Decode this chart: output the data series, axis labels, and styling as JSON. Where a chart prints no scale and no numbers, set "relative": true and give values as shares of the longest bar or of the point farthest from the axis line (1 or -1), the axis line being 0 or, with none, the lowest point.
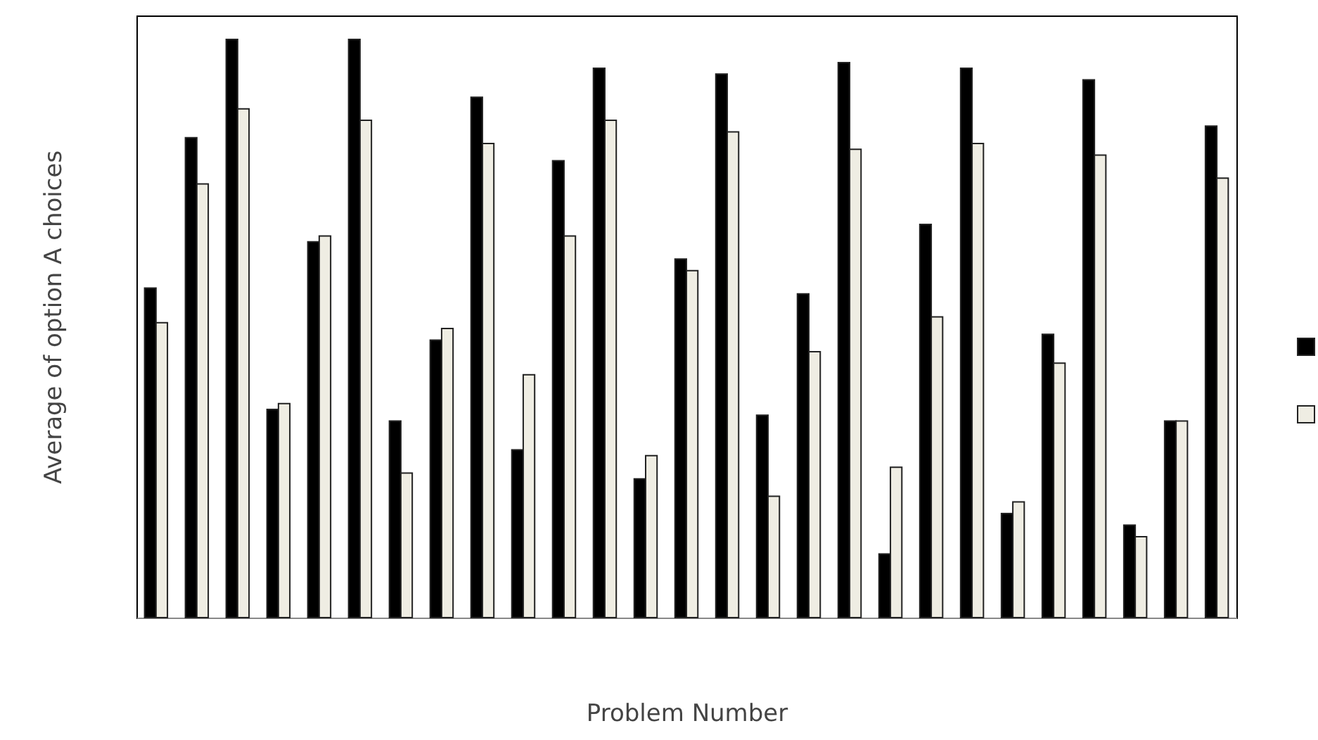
{
  "chart_data": {
    "type": "bar",
    "relative": true,
    "xlabel": "Problem Number",
    "ylabel": "Average of option A choices",
    "categories": [
      null,
      null,
      null,
      null,
      null,
      null,
      null,
      null,
      null,
      null,
      null,
      null,
      null,
      null,
      null,
      null,
      null,
      null,
      null,
      null,
      null,
      null,
      null,
      null,
      null,
      null,
      null
    ],
    "series": [
      {
        "color": "#000000",
        "values": [
          0.57,
          0.83,
          1,
          0.36,
          0.65,
          1,
          0.34,
          0.48,
          0.9,
          0.29,
          0.79,
          0.95,
          0.24,
          0.62,
          0.94,
          0.35,
          0.56,
          0.96,
          0.11,
          0.68,
          0.95,
          0.18,
          0.49,
          0.93,
          0.16,
          0.34,
          0.85
        ]
      },
      {
        "color": "#efede3",
        "values": [
          0.51,
          0.75,
          0.88,
          0.37,
          0.66,
          0.86,
          0.25,
          0.5,
          0.82,
          0.42,
          0.66,
          0.86,
          0.28,
          0.6,
          0.84,
          0.21,
          0.46,
          0.81,
          0.26,
          0.52,
          0.82,
          0.2,
          0.44,
          0.8,
          0.14,
          0.34,
          0.76
        ]
      }
    ]
  }
}
